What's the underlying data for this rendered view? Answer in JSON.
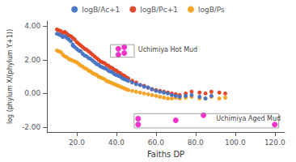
{
  "chart_data": {
    "type": "scatter",
    "xlabel": "Faiths DP",
    "ylabel": "log (phylum X/(phylum Y+1))",
    "xlim": [
      5,
      125
    ],
    "ylim": [
      -2.3,
      4.3
    ],
    "xticks": [
      {
        "value": 20,
        "label": "20.0"
      },
      {
        "value": 40,
        "label": "40.0"
      },
      {
        "value": 60,
        "label": "60.0"
      },
      {
        "value": 80,
        "label": "80.0"
      },
      {
        "value": 100,
        "label": "100.0"
      },
      {
        "value": 120,
        "label": "120.0"
      }
    ],
    "yticks": [
      {
        "value": -2,
        "label": "-2.00"
      },
      {
        "value": 0,
        "label": "0.00"
      },
      {
        "value": 2,
        "label": "2.00"
      },
      {
        "value": 4,
        "label": "4.00"
      }
    ],
    "grid": false,
    "legend": "top",
    "series": [
      {
        "name": "logB/Ac+1",
        "color": "#4472C4",
        "x": [
          10,
          11,
          12,
          13,
          14,
          15,
          16,
          17,
          18,
          18,
          19,
          20,
          21,
          22,
          23,
          24,
          25,
          26,
          27,
          28,
          29,
          30,
          31,
          32,
          33,
          34,
          35,
          36,
          37,
          38,
          39,
          40,
          41,
          42,
          43,
          44,
          45,
          46,
          48,
          50,
          52,
          54,
          56,
          58,
          60,
          62,
          64,
          66,
          68,
          70,
          72,
          75,
          78,
          82,
          85,
          88
        ],
        "values": [
          3.55,
          3.5,
          3.45,
          3.35,
          3.4,
          3.3,
          3.2,
          3.1,
          2.85,
          2.9,
          2.75,
          2.65,
          2.55,
          2.5,
          2.35,
          2.25,
          2.2,
          2.1,
          2.05,
          1.95,
          1.85,
          1.75,
          1.7,
          1.6,
          1.55,
          1.5,
          1.45,
          1.35,
          1.3,
          1.25,
          1.15,
          1.1,
          1.05,
          1.0,
          0.9,
          0.85,
          0.8,
          0.75,
          0.65,
          0.55,
          0.5,
          0.4,
          0.35,
          0.25,
          0.15,
          0.1,
          0.05,
          0.0,
          -0.1,
          -0.15,
          -0.2,
          -0.15,
          -0.1,
          -0.2,
          -0.3,
          -0.15
        ]
      },
      {
        "name": "logB/Pc+1",
        "color": "#E04020",
        "x": [
          10,
          11,
          12,
          13,
          14,
          15,
          16,
          17,
          18,
          19,
          20,
          21,
          22,
          23,
          24,
          25,
          26,
          27,
          28,
          29,
          30,
          31,
          32,
          33,
          34,
          35,
          36,
          37,
          38,
          39,
          40,
          41,
          42,
          43,
          44,
          45,
          46,
          48,
          50,
          52,
          54,
          56,
          58,
          60,
          62,
          64,
          66,
          68,
          70,
          72,
          75,
          78,
          82,
          85,
          88,
          92,
          95
        ],
        "values": [
          3.8,
          3.75,
          3.7,
          3.6,
          3.65,
          3.55,
          3.45,
          3.4,
          3.3,
          3.2,
          3.05,
          2.95,
          2.85,
          2.75,
          2.65,
          2.6,
          2.5,
          2.4,
          2.3,
          2.2,
          2.1,
          2.0,
          1.9,
          1.85,
          1.8,
          1.7,
          1.65,
          1.55,
          1.5,
          1.4,
          1.35,
          1.25,
          1.2,
          1.1,
          1.05,
          0.95,
          0.9,
          0.75,
          0.65,
          0.5,
          0.45,
          0.35,
          0.25,
          0.2,
          0.15,
          0.1,
          0.05,
          0.0,
          -0.05,
          -0.1,
          0.0,
          0.1,
          0.05,
          0.0,
          0.1,
          0.05,
          0.0
        ]
      },
      {
        "name": "logB/Ps",
        "color": "#F5A020",
        "x": [
          10,
          11,
          12,
          13,
          14,
          15,
          16,
          17,
          18,
          19,
          20,
          21,
          22,
          23,
          24,
          25,
          26,
          27,
          28,
          29,
          30,
          31,
          32,
          33,
          34,
          35,
          36,
          37,
          38,
          39,
          40,
          41,
          42,
          43,
          44,
          45,
          46,
          48,
          50,
          52,
          54,
          56,
          58,
          60,
          62,
          64,
          66,
          68,
          70,
          72,
          75,
          78,
          82,
          85,
          88,
          92,
          95
        ],
        "values": [
          2.55,
          2.5,
          2.45,
          2.3,
          2.2,
          2.15,
          2.05,
          2.0,
          1.95,
          1.9,
          1.85,
          1.75,
          1.65,
          1.6,
          1.5,
          1.45,
          1.35,
          1.3,
          1.2,
          1.15,
          1.1,
          1.0,
          0.95,
          0.9,
          0.85,
          0.75,
          0.7,
          0.65,
          0.6,
          0.55,
          0.5,
          0.45,
          0.4,
          0.35,
          0.3,
          0.25,
          0.2,
          0.15,
          0.1,
          0.05,
          0.0,
          -0.05,
          -0.1,
          -0.15,
          -0.2,
          -0.25,
          -0.3,
          -0.3,
          -0.25,
          -0.3,
          -0.25,
          -0.2,
          -0.3,
          -0.3,
          -0.2,
          -0.3,
          -0.25
        ]
      }
    ],
    "annotations": [
      {
        "text": "Uchimiya Hot Mud",
        "x": 51,
        "y": 2.6,
        "box": {
          "x": 37,
          "y": 2.15,
          "width": 12,
          "height": 0.75
        },
        "points": {
          "x": [
            41,
            44,
            41,
            44
          ],
          "y": [
            2.65,
            2.75,
            2.3,
            2.4
          ]
        },
        "color": "#EE00BB"
      },
      {
        "text": "Uchimiya Aged Mud",
        "x": 123,
        "y": -1.5,
        "box": {
          "x": 49,
          "y": -2.05,
          "width": 73,
          "height": 0.85
        },
        "points": {
          "x": [
            51,
            51,
            70,
            84,
            120
          ],
          "y": [
            -1.85,
            -1.5,
            -1.6,
            -1.3,
            -1.85
          ]
        },
        "color": "#EE00BB"
      }
    ]
  }
}
